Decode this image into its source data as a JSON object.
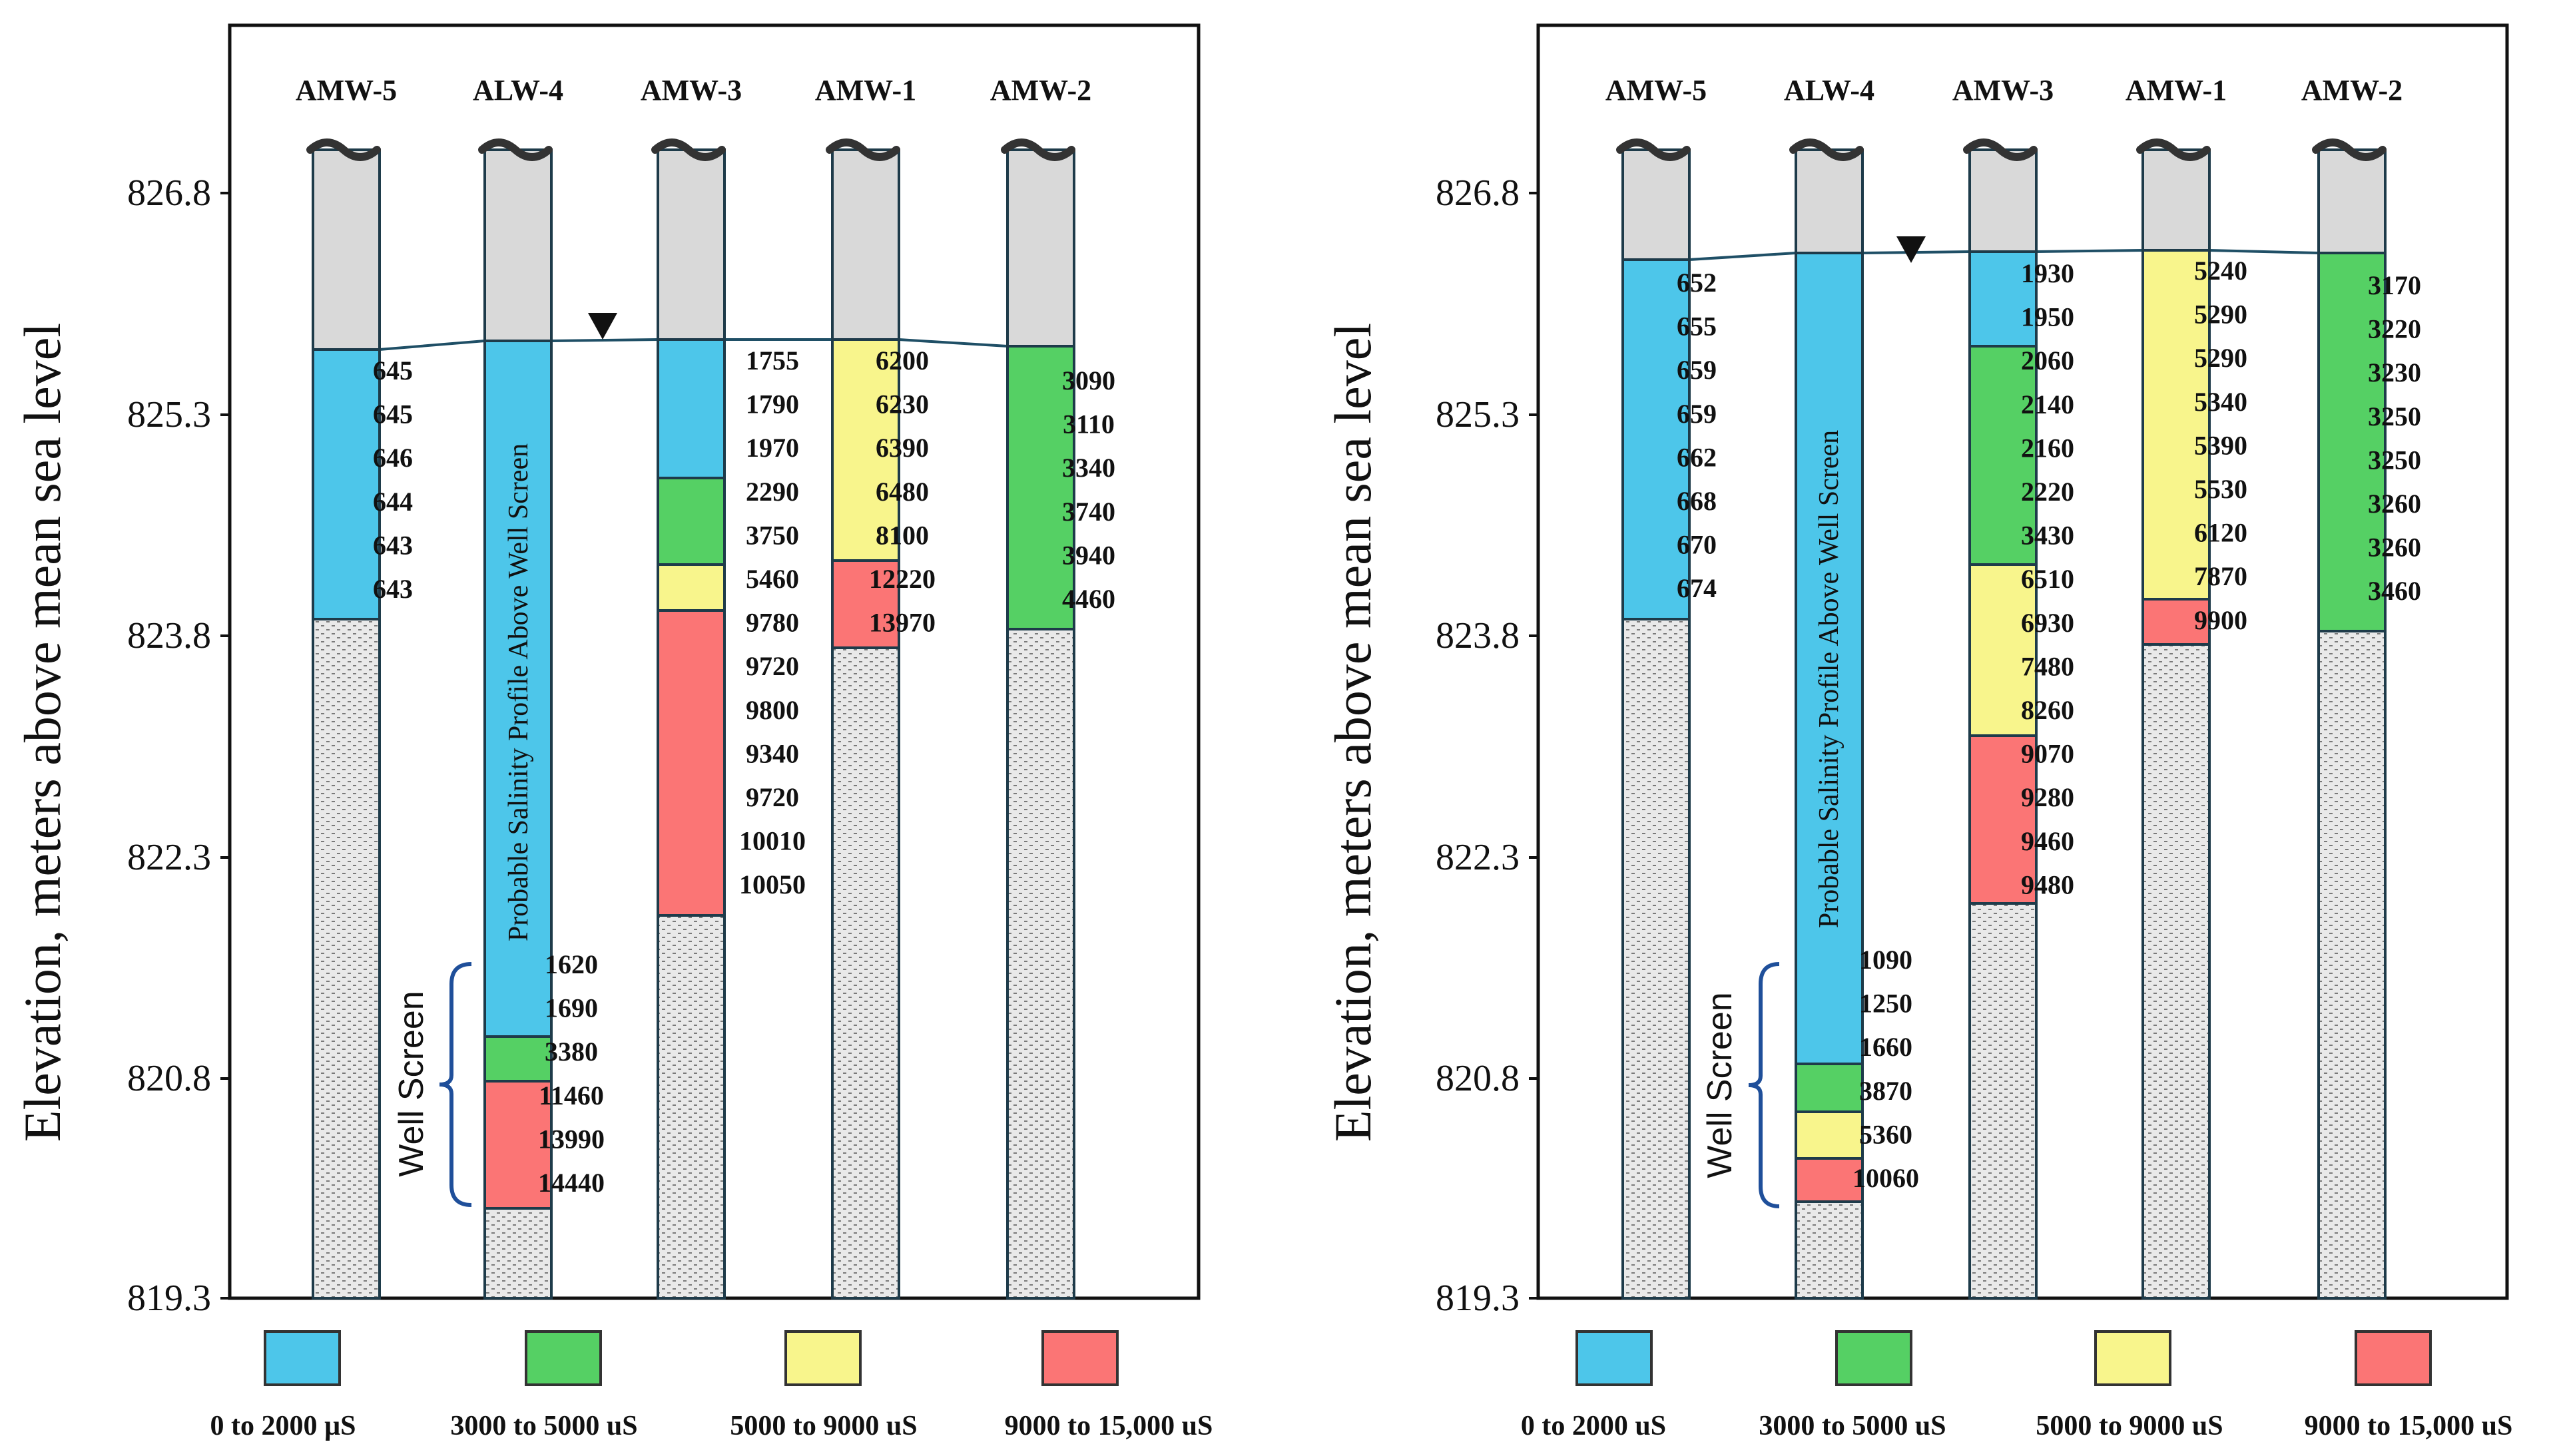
{
  "y_axis": {
    "label": "Elevation, meters above mean sea level",
    "ticks": [
      "826.8",
      "825.3",
      "823.8",
      "822.3",
      "820.8",
      "819.3"
    ]
  },
  "colors": {
    "blue": "#4dc6ea",
    "green": "#55d064",
    "yellow": "#f8f58c",
    "red": "#fb7575",
    "gray": "#d9d9d9"
  },
  "legend": [
    {
      "color": "blue"
    },
    {
      "color": "green"
    },
    {
      "color": "yellow"
    },
    {
      "color": "red"
    }
  ],
  "panels": [
    {
      "legend_labels": [
        "0 to 2000 µS",
        "3000 to 5000 uS",
        "5000 to 9000 uS",
        "9000 to 15,000 uS"
      ],
      "wells": [
        {
          "name": "AMW-5",
          "values": [
            "645",
            "645",
            "646",
            "644",
            "643",
            "643"
          ]
        },
        {
          "name": "ALW-4",
          "values": [
            "1620",
            "1690",
            "3380",
            "11460",
            "13990",
            "14440"
          ]
        },
        {
          "name": "AMW-3",
          "values": [
            "1755",
            "1790",
            "1970",
            "2290",
            "3750",
            "5460",
            "9780",
            "9720",
            "9800",
            "9340",
            "9720",
            "10010",
            "10050"
          ]
        },
        {
          "name": "AMW-1",
          "values": [
            "6200",
            "6230",
            "6390",
            "6480",
            "8100",
            "12220",
            "13970"
          ]
        },
        {
          "name": "AMW-2",
          "values": [
            "3090",
            "3110",
            "3340",
            "3740",
            "3940",
            "4460"
          ]
        }
      ],
      "alw_label": "Probable Salinity Profile Above Well Screen",
      "screen_label": "Well Screen"
    },
    {
      "legend_labels": [
        "0 to 2000 uS",
        "3000 to 5000 uS",
        "5000 to 9000 uS",
        "9000 to 15,000 uS"
      ],
      "wells": [
        {
          "name": "AMW-5",
          "values": [
            "652",
            "655",
            "659",
            "659",
            "662",
            "668",
            "670",
            "674"
          ]
        },
        {
          "name": "ALW-4",
          "values": [
            "1090",
            "1250",
            "1660",
            "3870",
            "5360",
            "10060"
          ]
        },
        {
          "name": "AMW-3",
          "values": [
            "1930",
            "1950",
            "2060",
            "2140",
            "2160",
            "2220",
            "3430",
            "6510",
            "6930",
            "7480",
            "8260",
            "9070",
            "9280",
            "9460",
            "9480"
          ]
        },
        {
          "name": "AMW-1",
          "values": [
            "5240",
            "5290",
            "5290",
            "5340",
            "5390",
            "5530",
            "6120",
            "7870",
            "9900"
          ]
        },
        {
          "name": "AMW-2",
          "values": [
            "3170",
            "3220",
            "3230",
            "3250",
            "3250",
            "3260",
            "3260",
            "3460"
          ]
        }
      ],
      "alw_label": "Probable Salinity Profile Above Well Screen",
      "screen_label": "Well Screen"
    }
  ]
}
